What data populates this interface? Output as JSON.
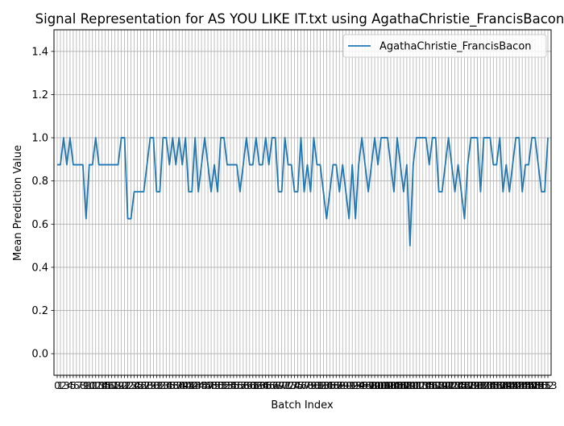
{
  "chart_data": {
    "type": "line",
    "title": "Signal Representation for AS YOU LIKE IT.txt using AgathaChristie_FrancisBacon",
    "xlabel": "Batch Index",
    "ylabel": "Mean Prediction Value",
    "xlim": [
      -1,
      154
    ],
    "ylim": [
      -0.1,
      1.5
    ],
    "yticks": [
      0.0,
      0.2,
      0.4,
      0.6,
      0.8,
      1.0,
      1.2,
      1.4
    ],
    "ytick_labels": [
      "0.0",
      "0.2",
      "0.4",
      "0.6",
      "0.8",
      "1.0",
      "1.2",
      "1.4"
    ],
    "grid": true,
    "legend_position": "top-right",
    "colors": {
      "line": "#1f77b4",
      "grid": "#b0b0b0"
    },
    "series": [
      {
        "name": "AgathaChristie_FrancisBacon",
        "x": [
          0,
          1,
          2,
          3,
          4,
          5,
          6,
          7,
          8,
          9,
          10,
          11,
          12,
          13,
          14,
          15,
          16,
          17,
          18,
          19,
          20,
          21,
          22,
          23,
          24,
          25,
          26,
          27,
          28,
          29,
          30,
          31,
          32,
          33,
          34,
          35,
          36,
          37,
          38,
          39,
          40,
          41,
          42,
          43,
          44,
          45,
          46,
          47,
          48,
          49,
          50,
          51,
          52,
          53,
          54,
          55,
          56,
          57,
          58,
          59,
          60,
          61,
          62,
          63,
          64,
          65,
          66,
          67,
          68,
          69,
          70,
          71,
          72,
          73,
          74,
          75,
          76,
          77,
          78,
          79,
          80,
          81,
          82,
          83,
          84,
          85,
          86,
          87,
          88,
          89,
          90,
          91,
          92,
          93,
          94,
          95,
          96,
          97,
          98,
          99,
          100,
          101,
          102,
          103,
          104,
          105,
          106,
          107,
          108,
          109,
          110,
          111,
          112,
          113,
          114,
          115,
          116,
          117,
          118,
          119,
          120,
          121,
          122,
          123,
          124,
          125,
          126,
          127,
          128,
          129,
          130,
          131,
          132,
          133,
          134,
          135,
          136,
          137,
          138,
          139,
          140,
          141,
          142,
          143,
          144,
          145,
          146,
          147,
          148,
          149,
          150,
          151,
          152,
          153
        ],
        "values": [
          0.875,
          0.875,
          1.0,
          0.875,
          1.0,
          0.875,
          0.875,
          0.875,
          0.875,
          0.625,
          0.875,
          0.875,
          1.0,
          0.875,
          0.875,
          0.875,
          0.875,
          0.875,
          0.875,
          0.875,
          1.0,
          1.0,
          0.625,
          0.625,
          0.75,
          0.75,
          0.75,
          0.75,
          0.875,
          1.0,
          1.0,
          0.75,
          0.75,
          1.0,
          1.0,
          0.875,
          1.0,
          0.875,
          1.0,
          0.875,
          1.0,
          0.75,
          0.75,
          1.0,
          0.75,
          0.875,
          1.0,
          0.875,
          0.75,
          0.875,
          0.75,
          1.0,
          1.0,
          0.875,
          0.875,
          0.875,
          0.875,
          0.75,
          0.875,
          1.0,
          0.875,
          0.875,
          1.0,
          0.875,
          0.875,
          1.0,
          0.875,
          1.0,
          1.0,
          0.75,
          0.75,
          1.0,
          0.875,
          0.875,
          0.75,
          0.75,
          1.0,
          0.75,
          0.875,
          0.75,
          1.0,
          0.875,
          0.875,
          0.75,
          0.625,
          0.75,
          0.875,
          0.875,
          0.75,
          0.875,
          0.75,
          0.625,
          0.875,
          0.625,
          0.875,
          1.0,
          0.875,
          0.75,
          0.875,
          1.0,
          0.875,
          1.0,
          1.0,
          1.0,
          0.875,
          0.75,
          1.0,
          0.875,
          0.75,
          0.875,
          0.5,
          0.875,
          1.0,
          1.0,
          1.0,
          1.0,
          0.875,
          1.0,
          1.0,
          0.75,
          0.75,
          0.875,
          1.0,
          0.875,
          0.75,
          0.875,
          0.75,
          0.625,
          0.875,
          1.0,
          1.0,
          1.0,
          0.75,
          1.0,
          1.0,
          1.0,
          0.875,
          0.875,
          1.0,
          0.75,
          0.875,
          0.75,
          0.875,
          1.0,
          1.0,
          0.75,
          0.875,
          0.875,
          1.0,
          1.0,
          0.875,
          0.75,
          0.75,
          1.0
        ]
      }
    ]
  }
}
